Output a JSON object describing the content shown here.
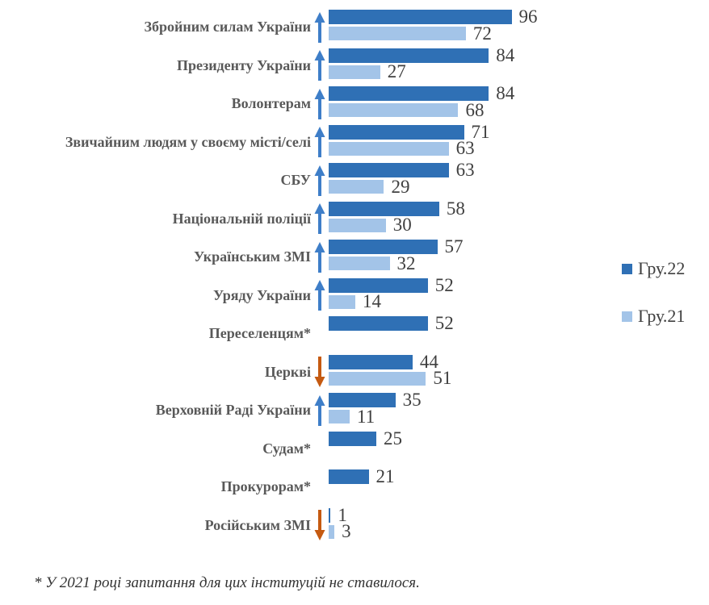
{
  "chart_data": {
    "type": "bar",
    "orientation": "horizontal",
    "title": "",
    "xlabel": "",
    "ylabel": "",
    "axis_range": [
      0,
      100
    ],
    "grid": false,
    "legend_position": "right",
    "legend": [
      {
        "name": "Гру.22",
        "color": "#2F70B5"
      },
      {
        "name": "Гру.21",
        "color": "#A3C4E8"
      }
    ],
    "trend_arrow_colors": {
      "up": "#3E7EC8",
      "down": "#C55A11"
    },
    "rows": [
      {
        "label": "Збройним силам України",
        "trend": "up",
        "v22": 96,
        "v21": 72
      },
      {
        "label": "Президенту України",
        "trend": "up",
        "v22": 84,
        "v21": 27
      },
      {
        "label": "Волонтерам",
        "trend": "up",
        "v22": 84,
        "v21": 68
      },
      {
        "label": "Звичайним людям у своєму місті/селі",
        "trend": "up",
        "v22": 71,
        "v21": 63
      },
      {
        "label": "СБУ",
        "trend": "up",
        "v22": 63,
        "v21": 29
      },
      {
        "label": "Національній поліції",
        "trend": "up",
        "v22": 58,
        "v21": 30
      },
      {
        "label": "Українським ЗМІ",
        "trend": "up",
        "v22": 57,
        "v21": 32
      },
      {
        "label": "Уряду України",
        "trend": "up",
        "v22": 52,
        "v21": 14
      },
      {
        "label": "Переселенцям*",
        "trend": "none",
        "v22": 52,
        "v21": null
      },
      {
        "label": "Церкві",
        "trend": "down",
        "v22": 44,
        "v21": 51
      },
      {
        "label": "Верховній Раді України",
        "trend": "up",
        "v22": 35,
        "v21": 11
      },
      {
        "label": "Судам*",
        "trend": "none",
        "v22": 25,
        "v21": null
      },
      {
        "label": "Прокурорам*",
        "trend": "none",
        "v22": 21,
        "v21": null
      },
      {
        "label": "Російським ЗМІ",
        "trend": "down",
        "v22": 1,
        "v21": 3
      }
    ],
    "footnote": "* У 2021 році запитання для цих інституцій не ставилося."
  }
}
